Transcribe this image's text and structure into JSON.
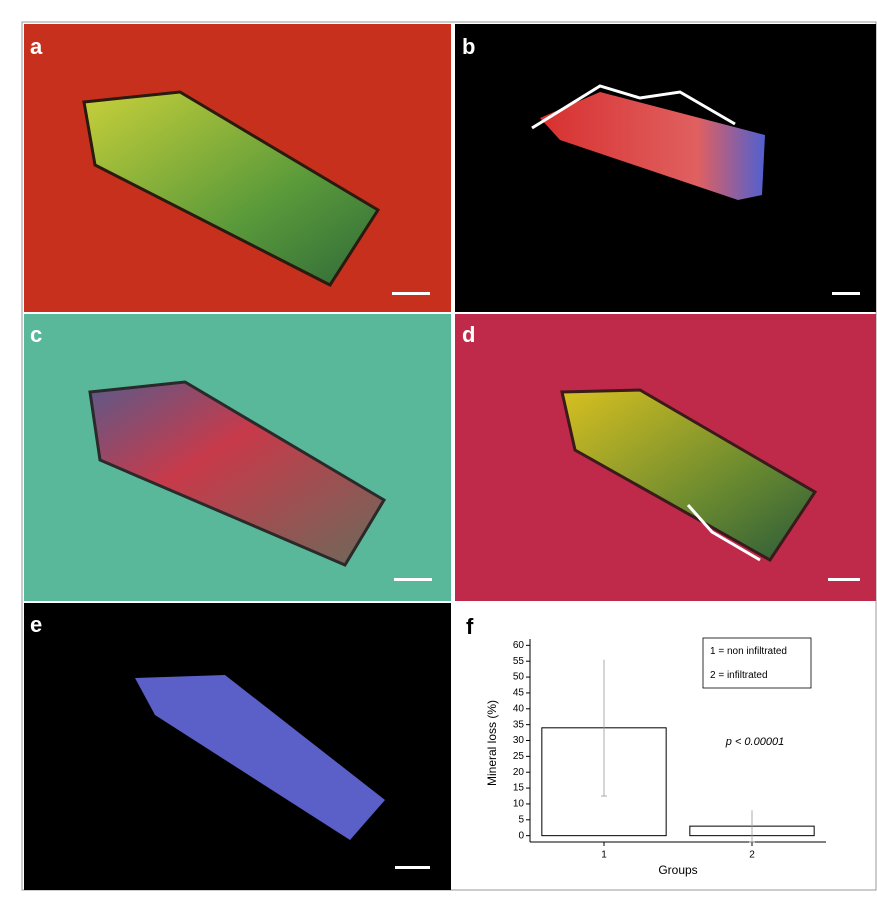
{
  "panels": {
    "labels": [
      "a",
      "b",
      "c",
      "d",
      "e",
      "f"
    ]
  },
  "chart_data": {
    "type": "bar",
    "ylabel": "Mineral loss (%)",
    "xlabel": "Groups",
    "categories": [
      "1",
      "2"
    ],
    "values": [
      34,
      3
    ],
    "errors": [
      21.5,
      5
    ],
    "color": "#ffffff",
    "ylim": [
      -2,
      62
    ],
    "yticks": [
      0,
      5,
      10,
      15,
      20,
      25,
      30,
      35,
      40,
      45,
      50,
      55,
      60
    ],
    "legend": [
      "1 = non infiltrated",
      "2 = infiltrated"
    ],
    "annotation": "p < 0.00001"
  }
}
